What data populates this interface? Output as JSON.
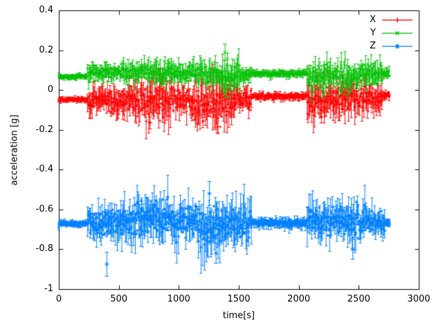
{
  "figure": {
    "background": "#ffffff",
    "axis_color": "#000000",
    "text_color": "#000000"
  },
  "chart_data": {
    "type": "scatter",
    "style": "points-with-errorbars",
    "xlabel": "time[s]",
    "ylabel": "acceleration [g]",
    "xlim": [
      0,
      3000
    ],
    "ylim": [
      -1,
      0.4
    ],
    "x_ticks": [
      0,
      500,
      1000,
      1500,
      2000,
      2500,
      3000
    ],
    "x_tick_labels": [
      "0",
      "500",
      "1000",
      "1500",
      "2000",
      "2500",
      "3000"
    ],
    "y_ticks": [
      -1,
      -0.8,
      -0.6,
      -0.4,
      -0.2,
      0,
      0.2,
      0.4
    ],
    "y_tick_labels": [
      "-1",
      "-0.8",
      "-0.6",
      "-0.4",
      "-0.2",
      "0",
      "0.2",
      "0.4"
    ],
    "grid": false,
    "legend_position": "top-right-inside",
    "x_data_range": [
      0,
      2760
    ],
    "series": [
      {
        "name": "X",
        "color": "#ff0000",
        "marker": "plus",
        "segments": [
          [
            0,
            240,
            -0.048,
            0.006
          ],
          [
            240,
            430,
            -0.052,
            0.028
          ],
          [
            430,
            620,
            -0.06,
            0.035
          ],
          [
            620,
            800,
            -0.055,
            0.045
          ],
          [
            800,
            960,
            -0.06,
            0.05
          ],
          [
            960,
            1110,
            -0.042,
            0.035
          ],
          [
            1110,
            1260,
            -0.06,
            0.05
          ],
          [
            1260,
            1460,
            -0.07,
            0.055
          ],
          [
            1460,
            1610,
            -0.05,
            0.03
          ],
          [
            1610,
            2070,
            -0.032,
            0.008
          ],
          [
            2070,
            2260,
            -0.05,
            0.045
          ],
          [
            2260,
            2510,
            -0.046,
            0.04
          ],
          [
            2510,
            2700,
            -0.04,
            0.036
          ],
          [
            2700,
            2760,
            -0.03,
            0.01
          ]
        ],
        "spikes": [
          [
            1285,
            0.1,
            0.03
          ],
          [
            760,
            -0.165,
            0.03
          ],
          [
            1320,
            -0.185,
            0.03
          ],
          [
            2190,
            -0.135,
            0.03
          ]
        ]
      },
      {
        "name": "Y",
        "color": "#00c000",
        "marker": "cross",
        "segments": [
          [
            0,
            240,
            0.068,
            0.006
          ],
          [
            240,
            520,
            0.088,
            0.02
          ],
          [
            520,
            720,
            0.09,
            0.024
          ],
          [
            720,
            960,
            0.085,
            0.027
          ],
          [
            960,
            1160,
            0.08,
            0.024
          ],
          [
            1160,
            1360,
            0.075,
            0.028
          ],
          [
            1360,
            1510,
            0.06,
            0.038
          ],
          [
            1510,
            1610,
            0.08,
            0.02
          ],
          [
            1610,
            2070,
            0.082,
            0.008
          ],
          [
            2070,
            2310,
            0.07,
            0.033
          ],
          [
            2310,
            2520,
            0.075,
            0.033
          ],
          [
            2520,
            2700,
            0.085,
            0.028
          ],
          [
            2700,
            2760,
            0.08,
            0.012
          ]
        ],
        "spikes": [
          [
            1385,
            0.19,
            0.04
          ],
          [
            1405,
            0.155,
            0.03
          ],
          [
            2210,
            -0.01,
            0.02
          ],
          [
            2360,
            0.0,
            0.02
          ]
        ]
      },
      {
        "name": "Z",
        "color": "#0080ff",
        "marker": "asterisk",
        "segments": [
          [
            0,
            240,
            -0.672,
            0.007
          ],
          [
            240,
            460,
            -0.665,
            0.038
          ],
          [
            460,
            660,
            -0.658,
            0.045
          ],
          [
            660,
            960,
            -0.64,
            0.05
          ],
          [
            960,
            1160,
            -0.665,
            0.045
          ],
          [
            1160,
            1360,
            -0.68,
            0.058
          ],
          [
            1360,
            1610,
            -0.675,
            0.052
          ],
          [
            1610,
            2070,
            -0.668,
            0.012
          ],
          [
            2070,
            2310,
            -0.655,
            0.045
          ],
          [
            2310,
            2560,
            -0.66,
            0.045
          ],
          [
            2560,
            2720,
            -0.665,
            0.032
          ],
          [
            2720,
            2760,
            -0.67,
            0.01
          ]
        ],
        "spikes": [
          [
            400,
            -0.875,
            0.06
          ],
          [
            690,
            -0.6,
            0.04
          ],
          [
            1255,
            -0.52,
            0.06
          ],
          [
            1310,
            -0.82,
            0.05
          ],
          [
            2450,
            -0.8,
            0.05
          ]
        ]
      }
    ]
  }
}
